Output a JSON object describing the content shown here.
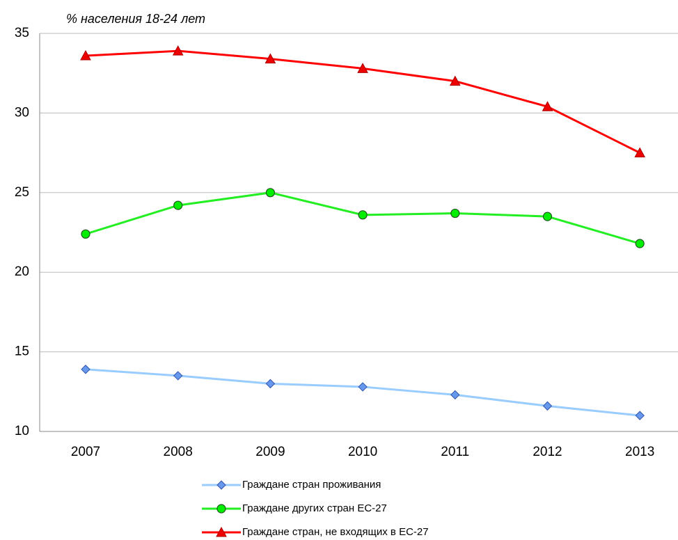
{
  "chart_data": {
    "type": "line",
    "title": "% населения 18-24 лет",
    "categories": [
      "2007",
      "2008",
      "2009",
      "2010",
      "2011",
      "2012",
      "2013"
    ],
    "series": [
      {
        "name": "Граждане стран проживания",
        "color": "#99ccff",
        "marker": "diamond",
        "marker_color": "#6699ee",
        "values": [
          13.9,
          13.5,
          13.0,
          12.8,
          12.3,
          11.6,
          11.0
        ]
      },
      {
        "name": "Граждане других стран ЕС-27",
        "color": "#22ee22",
        "marker": "circle",
        "marker_color": "#00ee00",
        "values": [
          22.4,
          24.2,
          25.0,
          23.6,
          23.7,
          23.5,
          21.8
        ]
      },
      {
        "name": "Граждане стран, не входящих в ЕС-27",
        "color": "#ff0000",
        "marker": "triangle",
        "marker_color": "#ee0000",
        "values": [
          33.6,
          33.9,
          33.4,
          32.8,
          32.0,
          30.4,
          27.5
        ]
      }
    ],
    "ylim": [
      10,
      35
    ],
    "yticks": [
      10,
      15,
      20,
      25,
      30,
      35
    ],
    "grid": true
  }
}
